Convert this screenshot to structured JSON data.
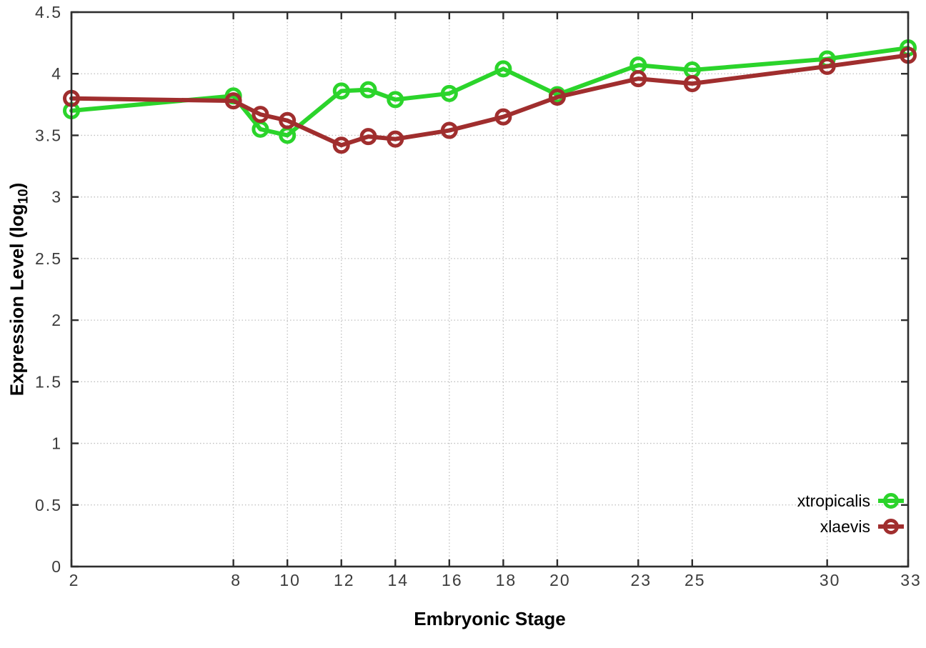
{
  "chart_data": {
    "type": "line",
    "title": "",
    "xlabel": "Embryonic Stage",
    "ylabel": "Expression Level (log10)",
    "ylabel_parts": {
      "prefix": "Expression Level (log",
      "subscript": "10",
      "suffix": ")"
    },
    "x": [
      2,
      8,
      9,
      10,
      12,
      13,
      14,
      16,
      18,
      20,
      23,
      25,
      30,
      33
    ],
    "series": [
      {
        "name": "xtropicalis",
        "color": "#2bd42b",
        "values": [
          3.7,
          3.82,
          3.55,
          3.5,
          3.86,
          3.87,
          3.79,
          3.84,
          4.04,
          3.83,
          4.07,
          4.03,
          4.12,
          4.21
        ]
      },
      {
        "name": "xlaevis",
        "color": "#a02e2e",
        "values": [
          3.8,
          3.78,
          3.67,
          3.62,
          3.42,
          3.49,
          3.47,
          3.54,
          3.65,
          3.81,
          3.96,
          3.92,
          4.06,
          4.15
        ]
      }
    ],
    "xticks": [
      2,
      8,
      10,
      12,
      14,
      16,
      18,
      20,
      23,
      25,
      30,
      33
    ],
    "yticks": [
      0,
      0.5,
      1,
      1.5,
      2,
      2.5,
      3,
      3.5,
      4,
      4.5
    ],
    "xlim": [
      2,
      33
    ],
    "ylim": [
      0,
      4.5
    ],
    "grid": true,
    "legend_position": "inside-bottom-right",
    "marker": "open-circle"
  },
  "style": {
    "background": "#ffffff",
    "border_color": "#2e2e2e",
    "grid_color": "#bfbfbf",
    "tick_label_color": "#3c3c3c",
    "line_width": 6,
    "marker_radius": 9.5,
    "marker_stroke": 5
  }
}
